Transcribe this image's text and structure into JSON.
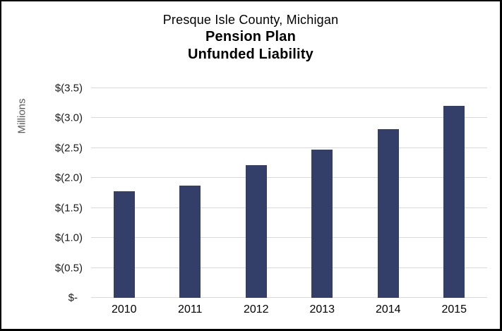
{
  "title": {
    "subtitle": "Presque Isle County, Michigan",
    "line1": "Pension Plan",
    "line2": "Unfunded Liability"
  },
  "chart_data": {
    "type": "bar",
    "title": "Presque Isle County, Michigan",
    "subtitle_lines": [
      "Pension Plan",
      "Unfunded Liability"
    ],
    "categories": [
      "2010",
      "2011",
      "2012",
      "2013",
      "2014",
      "2015"
    ],
    "values": [
      1.78,
      1.87,
      2.22,
      2.48,
      2.82,
      3.21
    ],
    "xlabel": "",
    "ylabel": "Millions",
    "ylim": [
      0,
      3.5
    ],
    "y_step": 0.5,
    "y_tick_labels": [
      "$-",
      "$(0.5)",
      "$(1.0)",
      "$(1.5)",
      "$(2.0)",
      "$(2.5)",
      "$(3.0)",
      "$(3.5)"
    ],
    "grid": true,
    "legend": false,
    "bar_color": "#333F68",
    "gridline_color": "#D9D9D9",
    "tick_text_color": "#1A1A1A",
    "unit_label_color": "#595959",
    "frame_border_color": "#000000",
    "background_color": "#FFFFFF"
  }
}
